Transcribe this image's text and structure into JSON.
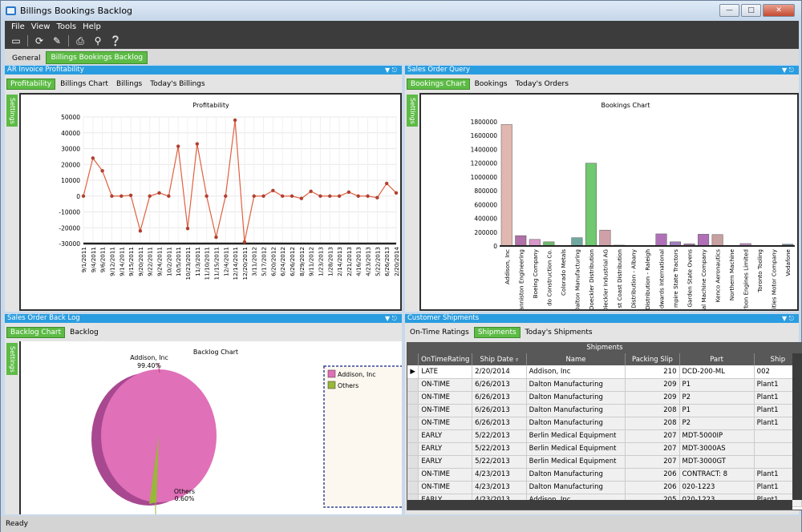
{
  "app": {
    "title": "Billings Bookings Backlog",
    "status": "Ready"
  },
  "menu": [
    "File",
    "View",
    "Tools",
    "Help"
  ],
  "window_tabs": {
    "general": "General",
    "bbb": "Billings Bookings Backlog"
  },
  "panels": {
    "ar": {
      "title": "AR Invoice Profitability",
      "tabs": [
        "Profitability",
        "Billings Chart",
        "Billings",
        "Today's Billings"
      ],
      "settings": "Settings"
    },
    "sales_query": {
      "title": "Sales Order Query",
      "tabs": [
        "Bookings Chart",
        "Bookings",
        "Today's Orders"
      ],
      "settings": "Settings"
    },
    "backlog": {
      "title": "Sales Order Back Log",
      "tabs": [
        "Backlog Chart",
        "Backlog"
      ],
      "settings": "Settings"
    },
    "shipments": {
      "title": "Customer Shipments",
      "tabs": [
        "On-Time Ratings",
        "Shipments",
        "Today's Shipments"
      ]
    }
  },
  "chart_data": [
    {
      "type": "line",
      "title": "Profitability",
      "ylim": [
        -30000,
        50000
      ],
      "yticks": [
        -30000,
        -20000,
        -10000,
        0,
        10000,
        20000,
        30000,
        40000,
        50000
      ],
      "x": [
        "9/1/2011",
        "9/4/2011",
        "9/6/2011",
        "9/12/2011",
        "9/14/2011",
        "9/15/2011",
        "9/20/2011",
        "9/22/2011",
        "9/24/2011",
        "10/2/2011",
        "10/5/2011",
        "10/23/2011",
        "11/3/2011",
        "11/10/2011",
        "11/15/2011",
        "12/4/2011",
        "12/14/2011",
        "12/20/2011",
        "3/11/2012",
        "5/17/2012",
        "6/20/2012",
        "6/24/2012",
        "6/26/2012",
        "8/29/2012",
        "9/11/2012",
        "1/23/2013",
        "1/28/2013",
        "2/14/2013",
        "2/21/2013",
        "4/16/2013",
        "4/23/2013",
        "5/22/2013",
        "6/26/2013",
        "2/20/2014"
      ],
      "values": [
        0,
        24000,
        16000,
        0,
        0,
        500,
        -22000,
        0,
        2000,
        0,
        31500,
        -20500,
        33000,
        0,
        -26000,
        0,
        48000,
        -29000,
        0,
        0,
        3500,
        0,
        0,
        -1500,
        3000,
        0,
        0,
        0,
        2500,
        0,
        0,
        -1000,
        8000,
        2000
      ]
    },
    {
      "type": "bar",
      "title": "Bookings Chart",
      "ylim": [
        0,
        1800000
      ],
      "yticks": [
        0,
        200000,
        400000,
        600000,
        800000,
        1000000,
        1200000,
        1400000,
        1600000,
        1800000
      ],
      "categories": [
        "Addison, Inc",
        "anniston Engineering",
        "Boeing Company",
        "do Construction Co.",
        "Colorado Metals",
        "Dalton Manufacturing",
        "Doeckler Distribution",
        "Dieckler Industrial AG",
        "st Coast Distribution",
        "Distribution - Albany",
        "Distribution - Raleigh",
        "dwards International",
        "mpire State Tractors",
        "Garden State Ovens",
        "al Machine Company",
        "Kenco Aeronautics",
        "Northern Machine",
        "rbon Engines Limited",
        "Toronto Tooling",
        "ities Motor Company",
        "Vodafone"
      ],
      "values": [
        1760000,
        150000,
        95000,
        60000,
        0,
        120000,
        1200000,
        230000,
        12000,
        0,
        2000,
        175000,
        60000,
        30000,
        170000,
        165000,
        0,
        35000,
        5000,
        8000,
        25000
      ],
      "colors": [
        "#e0b8b0",
        "#b070a8",
        "#d898c8",
        "#70b870",
        "#d0a8a0",
        "#70a8a0",
        "#70c870",
        "#d0a0a8",
        "#8080a0",
        "#8080a0",
        "#8080a0",
        "#b070b8",
        "#a080c0",
        "#a070a8",
        "#b070b8",
        "#c8a0a0",
        "#8080a0",
        "#c090c0",
        "#8080a0",
        "#8080a0",
        "#6a8a98"
      ]
    },
    {
      "type": "pie",
      "title": "Backlog Chart",
      "categories": [
        "Addison, Inc",
        "Others"
      ],
      "values": [
        99.4,
        0.6
      ],
      "labels": [
        "99.40%",
        "0.60%"
      ],
      "colors": [
        "#e070b8",
        "#98b838"
      ]
    }
  ],
  "shipments": {
    "grid_title": "Shipments",
    "columns": [
      "OnTimeRating",
      "Ship Date",
      "Name",
      "Packing Slip",
      "Part",
      "Ship"
    ],
    "rows": [
      [
        "LATE",
        "2/20/2014",
        "Addison, Inc",
        "210",
        "DCD-200-ML",
        "002"
      ],
      [
        "ON-TIME",
        "6/26/2013",
        "Dalton Manufacturing",
        "209",
        "P1",
        "Plant1"
      ],
      [
        "ON-TIME",
        "6/26/2013",
        "Dalton Manufacturing",
        "209",
        "P2",
        "Plant1"
      ],
      [
        "ON-TIME",
        "6/26/2013",
        "Dalton Manufacturing",
        "208",
        "P1",
        "Plant1"
      ],
      [
        "ON-TIME",
        "6/26/2013",
        "Dalton Manufacturing",
        "208",
        "P2",
        "Plant1"
      ],
      [
        "EARLY",
        "5/22/2013",
        "Berlin Medical Equipment",
        "207",
        "MDT-5000IP",
        ""
      ],
      [
        "EARLY",
        "5/22/2013",
        "Berlin Medical Equipment",
        "207",
        "MDT-3000AS",
        ""
      ],
      [
        "EARLY",
        "5/22/2013",
        "Berlin Medical Equipment",
        "207",
        "MDT-3000GT",
        ""
      ],
      [
        "ON-TIME",
        "4/23/2013",
        "Dalton Manufacturing",
        "206",
        "CONTRACT: 8",
        "Plant1"
      ],
      [
        "ON-TIME",
        "4/23/2013",
        "Dalton Manufacturing",
        "206",
        "020-1223",
        "Plant1"
      ],
      [
        "EARLY",
        "4/23/2013",
        "Addison, Inc",
        "205",
        "020-1223",
        "Plant1"
      ]
    ]
  }
}
